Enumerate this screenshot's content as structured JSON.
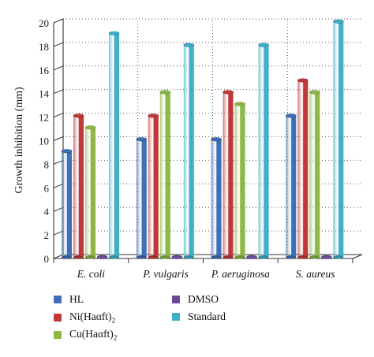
{
  "chart_data": {
    "type": "bar",
    "title": "",
    "xlabel": "",
    "ylabel": "Growth inhibition (mm)",
    "ylim": [
      0,
      20
    ],
    "yticks": [
      0,
      2,
      4,
      6,
      8,
      10,
      12,
      14,
      16,
      18,
      20
    ],
    "categories": [
      "E. coli",
      "P. vulgaris",
      "P. aeruginosa",
      "S. aureus"
    ],
    "series": [
      {
        "name": "HL",
        "color": "#3f6fb5",
        "values": [
          9,
          10,
          10,
          12
        ]
      },
      {
        "name": "Ni(Haαft)",
        "sub": "2",
        "color": "#c0393a",
        "values": [
          12,
          12,
          14,
          15
        ]
      },
      {
        "name": "Cu(Haαft)",
        "sub": "2",
        "color": "#8db845",
        "values": [
          11,
          14,
          13,
          14
        ]
      },
      {
        "name": "DMSO",
        "color": "#6a4b9a",
        "values": [
          0,
          0,
          0,
          0
        ]
      },
      {
        "name": "Standard",
        "color": "#3fb0c8",
        "values": [
          19,
          18,
          18,
          20
        ]
      }
    ],
    "grid": true,
    "legend_position": "bottom"
  }
}
